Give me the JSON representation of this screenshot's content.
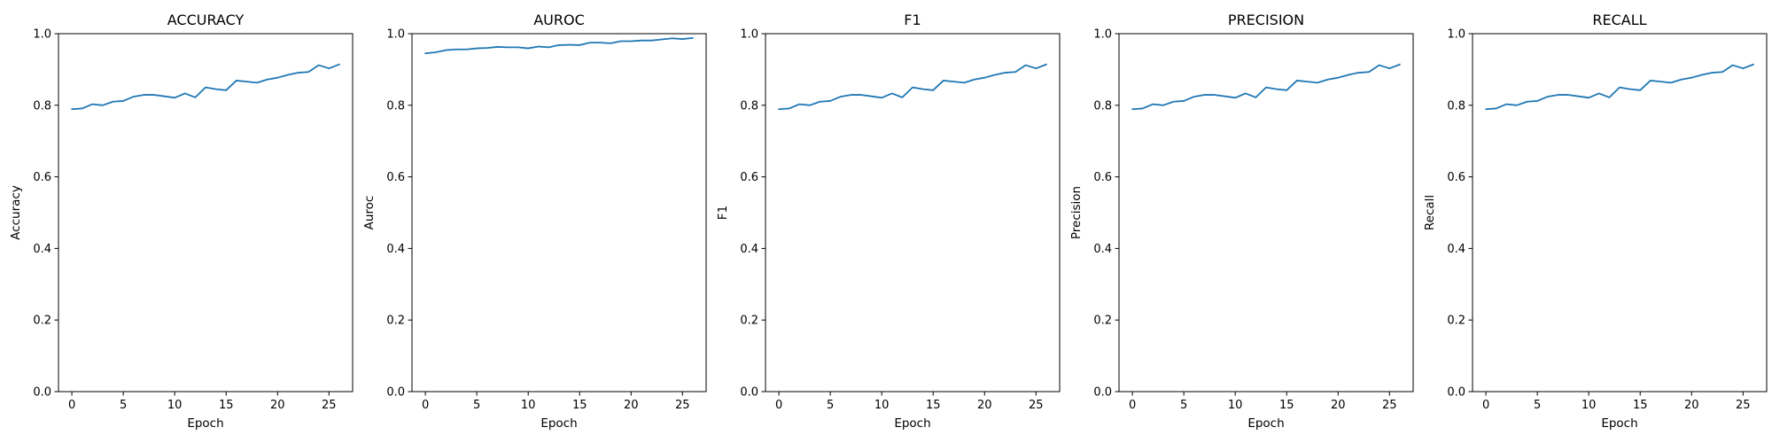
{
  "chart_data": [
    {
      "type": "line",
      "title": "ACCURACY",
      "xlabel": "Epoch",
      "ylabel": "Accuracy",
      "xlim": [
        -1.3,
        27.3
      ],
      "ylim": [
        0.0,
        1.0
      ],
      "xticks": [
        "0",
        "5",
        "10",
        "15",
        "20",
        "25"
      ],
      "yticks": [
        "0.0",
        "0.2",
        "0.4",
        "0.6",
        "0.8",
        "1.0"
      ],
      "grid": false,
      "color": "#1f77b4",
      "x": [
        0,
        1,
        2,
        3,
        4,
        5,
        6,
        7,
        8,
        9,
        10,
        11,
        12,
        13,
        14,
        15,
        16,
        17,
        18,
        19,
        20,
        21,
        22,
        23,
        24,
        25,
        26
      ],
      "y": [
        0.789,
        0.791,
        0.803,
        0.8,
        0.81,
        0.812,
        0.824,
        0.829,
        0.829,
        0.825,
        0.821,
        0.833,
        0.822,
        0.85,
        0.845,
        0.842,
        0.869,
        0.866,
        0.863,
        0.872,
        0.877,
        0.885,
        0.891,
        0.893,
        0.912,
        0.903,
        0.914
      ]
    },
    {
      "type": "line",
      "title": "AUROC",
      "xlabel": "Epoch",
      "ylabel": "Auroc",
      "xlim": [
        -1.3,
        27.3
      ],
      "ylim": [
        0.0,
        1.0
      ],
      "xticks": [
        "0",
        "5",
        "10",
        "15",
        "20",
        "25"
      ],
      "yticks": [
        "0.0",
        "0.2",
        "0.4",
        "0.6",
        "0.8",
        "1.0"
      ],
      "grid": false,
      "color": "#1f77b4",
      "x": [
        0,
        1,
        2,
        3,
        4,
        5,
        6,
        7,
        8,
        9,
        10,
        11,
        12,
        13,
        14,
        15,
        16,
        17,
        18,
        19,
        20,
        21,
        22,
        23,
        24,
        25,
        26
      ],
      "y": [
        0.945,
        0.948,
        0.954,
        0.956,
        0.956,
        0.959,
        0.96,
        0.963,
        0.962,
        0.962,
        0.959,
        0.964,
        0.962,
        0.968,
        0.969,
        0.968,
        0.975,
        0.975,
        0.973,
        0.979,
        0.979,
        0.981,
        0.981,
        0.984,
        0.987,
        0.985,
        0.988
      ]
    },
    {
      "type": "line",
      "title": "F1",
      "xlabel": "Epoch",
      "ylabel": "F1",
      "xlim": [
        -1.3,
        27.3
      ],
      "ylim": [
        0.0,
        1.0
      ],
      "xticks": [
        "0",
        "5",
        "10",
        "15",
        "20",
        "25"
      ],
      "yticks": [
        "0.0",
        "0.2",
        "0.4",
        "0.6",
        "0.8",
        "1.0"
      ],
      "grid": false,
      "color": "#1f77b4",
      "x": [
        0,
        1,
        2,
        3,
        4,
        5,
        6,
        7,
        8,
        9,
        10,
        11,
        12,
        13,
        14,
        15,
        16,
        17,
        18,
        19,
        20,
        21,
        22,
        23,
        24,
        25,
        26
      ],
      "y": [
        0.789,
        0.791,
        0.803,
        0.8,
        0.81,
        0.812,
        0.824,
        0.829,
        0.829,
        0.825,
        0.821,
        0.833,
        0.822,
        0.85,
        0.845,
        0.842,
        0.869,
        0.866,
        0.863,
        0.872,
        0.877,
        0.885,
        0.891,
        0.893,
        0.912,
        0.903,
        0.914
      ]
    },
    {
      "type": "line",
      "title": "PRECISION",
      "xlabel": "Epoch",
      "ylabel": "Precision",
      "xlim": [
        -1.3,
        27.3
      ],
      "ylim": [
        0.0,
        1.0
      ],
      "xticks": [
        "0",
        "5",
        "10",
        "15",
        "20",
        "25"
      ],
      "yticks": [
        "0.0",
        "0.2",
        "0.4",
        "0.6",
        "0.8",
        "1.0"
      ],
      "grid": false,
      "color": "#1f77b4",
      "x": [
        0,
        1,
        2,
        3,
        4,
        5,
        6,
        7,
        8,
        9,
        10,
        11,
        12,
        13,
        14,
        15,
        16,
        17,
        18,
        19,
        20,
        21,
        22,
        23,
        24,
        25,
        26
      ],
      "y": [
        0.789,
        0.791,
        0.803,
        0.8,
        0.81,
        0.812,
        0.824,
        0.829,
        0.829,
        0.825,
        0.821,
        0.833,
        0.822,
        0.85,
        0.845,
        0.842,
        0.869,
        0.866,
        0.863,
        0.872,
        0.877,
        0.885,
        0.891,
        0.893,
        0.912,
        0.903,
        0.914
      ]
    },
    {
      "type": "line",
      "title": "RECALL",
      "xlabel": "Epoch",
      "ylabel": "Recall",
      "xlim": [
        -1.3,
        27.3
      ],
      "ylim": [
        0.0,
        1.0
      ],
      "xticks": [
        "0",
        "5",
        "10",
        "15",
        "20",
        "25"
      ],
      "yticks": [
        "0.0",
        "0.2",
        "0.4",
        "0.6",
        "0.8",
        "1.0"
      ],
      "grid": false,
      "color": "#1f77b4",
      "x": [
        0,
        1,
        2,
        3,
        4,
        5,
        6,
        7,
        8,
        9,
        10,
        11,
        12,
        13,
        14,
        15,
        16,
        17,
        18,
        19,
        20,
        21,
        22,
        23,
        24,
        25,
        26
      ],
      "y": [
        0.789,
        0.791,
        0.803,
        0.8,
        0.81,
        0.812,
        0.824,
        0.829,
        0.829,
        0.825,
        0.821,
        0.833,
        0.822,
        0.85,
        0.845,
        0.842,
        0.869,
        0.866,
        0.863,
        0.872,
        0.877,
        0.885,
        0.891,
        0.893,
        0.912,
        0.903,
        0.914
      ]
    }
  ]
}
